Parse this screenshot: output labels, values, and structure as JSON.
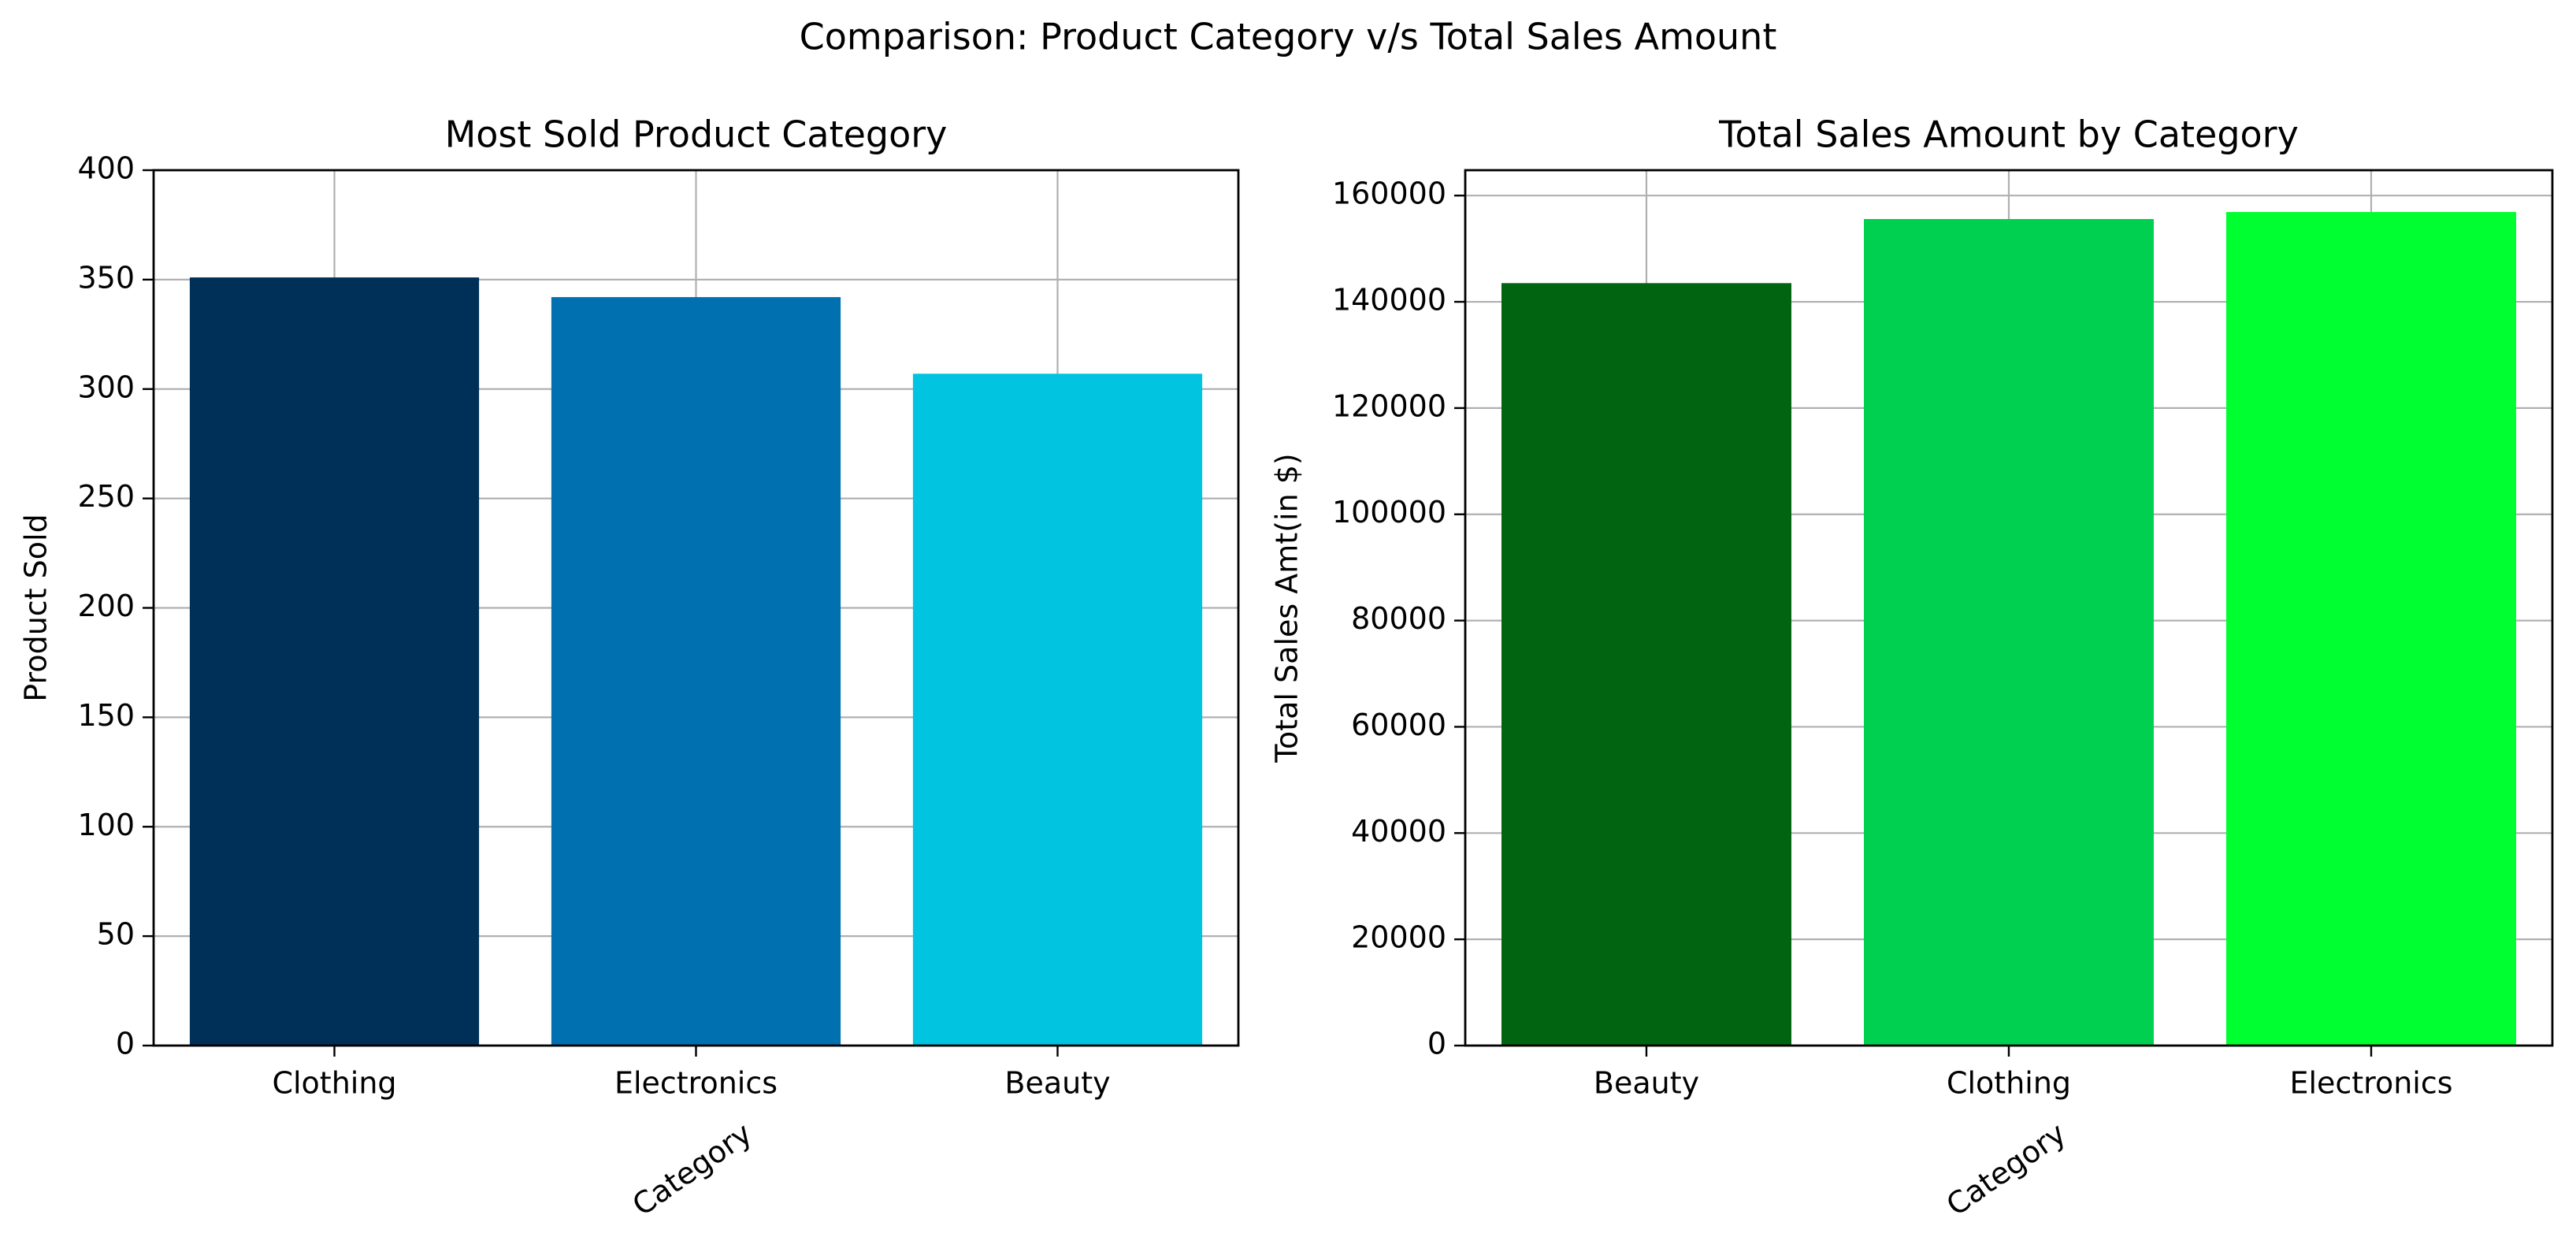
{
  "figure": {
    "title": "Comparison: Product Category v/s Total Sales Amount"
  },
  "chart_data": [
    {
      "type": "bar",
      "title": "Most Sold Product Category",
      "xlabel": "Category",
      "ylabel": "Product Sold",
      "categories": [
        "Clothing",
        "Electronics",
        "Beauty"
      ],
      "values": [
        351,
        342,
        307
      ],
      "colors": [
        "#003058",
        "#0070b0",
        "#00c4e0"
      ],
      "ylim": [
        0,
        400
      ],
      "yticks": [
        0,
        50,
        100,
        150,
        200,
        250,
        300,
        350,
        400
      ],
      "ytick_labels": [
        "0",
        "50",
        "100",
        "150",
        "200",
        "250",
        "300",
        "350",
        "400"
      ],
      "grid": true
    },
    {
      "type": "bar",
      "title": "Total Sales Amount by Category",
      "xlabel": "Category",
      "ylabel": "Total Sales Amt(in $)",
      "categories": [
        "Beauty",
        "Clothing",
        "Electronics"
      ],
      "values": [
        143515,
        155580,
        156905
      ],
      "colors": [
        "#006410",
        "#00d050",
        "#00ff30"
      ],
      "ylim": [
        0,
        164775
      ],
      "yticks": [
        0,
        20000,
        40000,
        60000,
        80000,
        100000,
        120000,
        140000,
        160000
      ],
      "ytick_labels": [
        "0",
        "20000",
        "40000",
        "60000",
        "80000",
        "100000",
        "120000",
        "140000",
        "160000"
      ],
      "grid": true
    }
  ]
}
